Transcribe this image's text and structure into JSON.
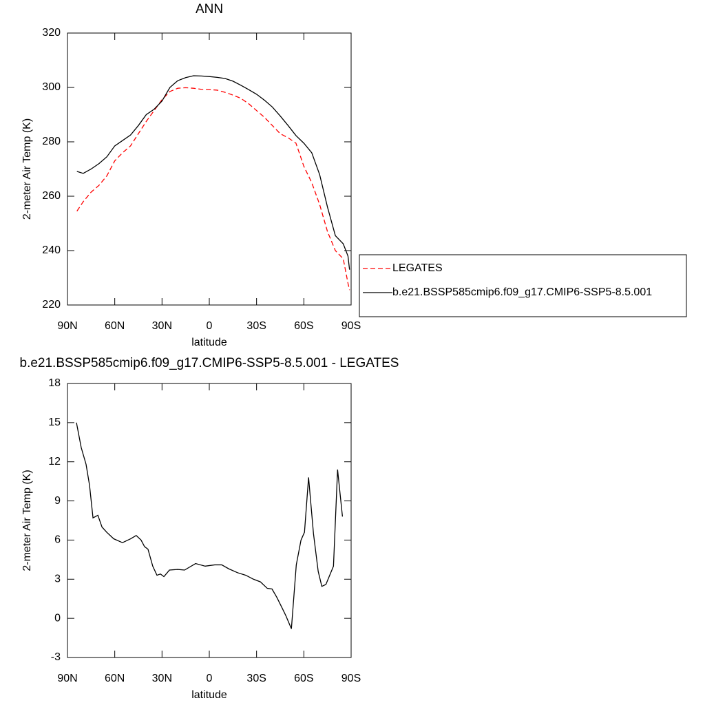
{
  "chart_data": [
    {
      "type": "line",
      "title": "ANN",
      "xlabel": "latitude",
      "ylabel": "2-meter Air Temp (K)",
      "x": [
        84,
        80,
        75,
        70,
        65,
        60,
        55,
        50,
        45,
        40,
        35,
        30,
        25,
        20,
        15,
        10,
        5,
        0,
        -5,
        -10,
        -15,
        -20,
        -25,
        -30,
        -35,
        -40,
        -45,
        -50,
        -55,
        -60,
        -65,
        -70,
        -75,
        -80,
        -85,
        -88,
        -89
      ],
      "series": [
        {
          "name": "LEGATES",
          "color": "#ff0000",
          "style": "dashed",
          "values": [
            254.5,
            258,
            261.5,
            264,
            267.5,
            273,
            276,
            278.5,
            283,
            287.5,
            291.5,
            295.5,
            298.5,
            299.7,
            299.9,
            299.7,
            299.3,
            299.2,
            299,
            298.2,
            297.2,
            296,
            294,
            291.5,
            289,
            286,
            283,
            281.5,
            279.5,
            271,
            265,
            257,
            247,
            240,
            237,
            228,
            225.5
          ]
        },
        {
          "name": "b.e21.BSSP585cmip6.f09_g17.CMIP6-SSP5-8.5.001",
          "color": "#000000",
          "style": "solid",
          "values": [
            269.1,
            268.4,
            270,
            272,
            274.5,
            278.5,
            280.5,
            282.5,
            286,
            290,
            292,
            295,
            300,
            302.5,
            303.6,
            304.3,
            304.2,
            304,
            303.7,
            303.3,
            302.3,
            300.8,
            299.2,
            297.5,
            295.3,
            292.8,
            289.5,
            286,
            282.3,
            279.5,
            276,
            268,
            256,
            245.5,
            242.5,
            238,
            233
          ]
        }
      ],
      "xlim": [
        90,
        -90
      ],
      "xticks": [
        {
          "value": 90,
          "label": "90N"
        },
        {
          "value": 60,
          "label": "60N"
        },
        {
          "value": 30,
          "label": "30N"
        },
        0,
        {
          "value": -30,
          "label": "30S"
        },
        {
          "value": -60,
          "label": "60S"
        },
        {
          "value": -90,
          "label": "90S"
        }
      ],
      "ylim": [
        220,
        320
      ],
      "yticks": [
        220,
        240,
        260,
        280,
        300,
        320
      ],
      "legend": "right"
    },
    {
      "type": "line",
      "title": "b.e21.BSSP585cmip6.f09_g17.CMIP6-SSP5-8.5.001 - LEGATES",
      "xlabel": "latitude",
      "ylabel": "2-meter Air Temp (K)",
      "x": [
        84.3,
        81.3,
        78.2,
        76.0,
        73.8,
        70.7,
        68.1,
        65.1,
        60.7,
        55.1,
        49.9,
        46.4,
        43.3,
        41.1,
        38.9,
        35.9,
        33.2,
        31.0,
        28.8,
        25.3,
        20.1,
        15.7,
        8.7,
        2.6,
        -3.5,
        -7.9,
        -12.3,
        -17.9,
        -23.2,
        -28.0,
        -32.4,
        -36.8,
        -39.8,
        -42.9,
        -46.4,
        -48.6,
        -52.1,
        -55.2,
        -58.2,
        -60.4,
        -63.0,
        -66.1,
        -69.1,
        -71.4,
        -74.0,
        -78.8,
        -81.4,
        -84.5
      ],
      "values": [
        15,
        13.1,
        11.8,
        10.2,
        7.7,
        7.9,
        7.0,
        6.6,
        6.1,
        5.8,
        6.1,
        6.35,
        6.0,
        5.5,
        5.3,
        4.0,
        3.3,
        3.4,
        3.2,
        3.7,
        3.75,
        3.7,
        4.2,
        4.0,
        4.1,
        4.1,
        3.8,
        3.5,
        3.3,
        3.0,
        2.8,
        2.3,
        2.25,
        1.6,
        0.75,
        0.2,
        -0.8,
        4.1,
        6.0,
        6.6,
        10.8,
        6.5,
        3.6,
        2.45,
        2.6,
        4.0,
        11.4,
        7.8
      ],
      "color": "#000000",
      "xlim": [
        90,
        -90
      ],
      "xticks": [
        {
          "value": 90,
          "label": "90N"
        },
        {
          "value": 60,
          "label": "60N"
        },
        {
          "value": 30,
          "label": "30N"
        },
        0,
        {
          "value": -30,
          "label": "30S"
        },
        {
          "value": -60,
          "label": "60S"
        },
        {
          "value": -90,
          "label": "90S"
        }
      ],
      "ylim": [
        -3,
        18
      ],
      "yticks": [
        -3,
        0,
        3,
        6,
        9,
        12,
        15,
        18
      ]
    }
  ]
}
